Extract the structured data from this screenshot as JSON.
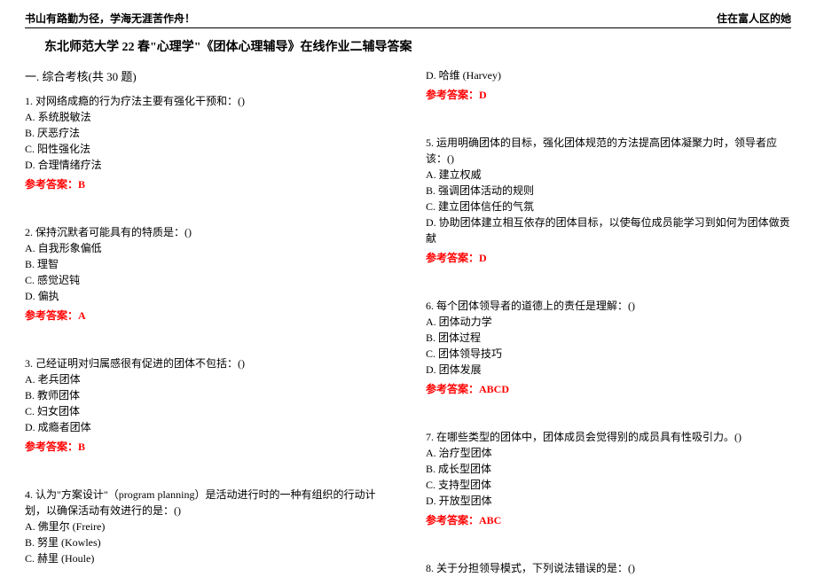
{
  "header": {
    "left": "书山有路勤为径，学海无涯苦作舟！",
    "right": "住在富人区的她"
  },
  "title": "东北师范大学 22 春\"心理学\"《团体心理辅导》在线作业二辅导答案",
  "section_heading": "一. 综合考核(共 30 题)",
  "answer_label_prefix": "参考答案：",
  "left_questions": [
    {
      "num": "1",
      "text": "对网络成瘾的行为疗法主要有强化干预和：()",
      "options": [
        "A. 系统脱敏法",
        "B. 厌恶疗法",
        "C. 阳性强化法",
        "D. 合理情绪疗法"
      ],
      "answer": "B"
    },
    {
      "num": "2",
      "text": "保持沉默者可能具有的特质是：()",
      "options": [
        "A. 自我形象偏低",
        "B. 理智",
        "C. 感觉迟钝",
        "D. 偏执"
      ],
      "answer": "A"
    },
    {
      "num": "3",
      "text": "己经证明对归属感很有促进的团体不包括：()",
      "options": [
        "A. 老兵团体",
        "B. 教师团体",
        "C. 妇女团体",
        "D. 成瘾者团体"
      ],
      "answer": "B"
    },
    {
      "num": "4",
      "text": "认为\"方案设计\"（program planning）是活动进行时的一种有组织的行动计划，以确保活动有效进行的是：()",
      "options": [
        "A. 佛里尔 (Freire)",
        "B. 努里 (Kowles)",
        "C. 赫里 (Houle)"
      ],
      "answer": null
    }
  ],
  "right_questions": [
    {
      "pre_option": "D. 哈维 (Harvey)",
      "answer": "D"
    },
    {
      "num": "5",
      "text": "运用明确团体的目标，强化团体规范的方法提高团体凝聚力时，领导者应该：()",
      "options": [
        "A. 建立权威",
        "B. 强调团体活动的规则",
        "C. 建立团体信任的气氛",
        "D. 协助团体建立相互依存的团体目标，以使每位成员能学习到如何为团体做贡献"
      ],
      "answer": "D"
    },
    {
      "num": "6",
      "text": "每个团体领导者的道德上的责任是理解：()",
      "options": [
        "A. 团体动力学",
        "B. 团体过程",
        "C. 团体领导技巧",
        "D. 团体发展"
      ],
      "answer": "ABCD"
    },
    {
      "num": "7",
      "text": "在哪些类型的团体中，团体成员会觉得别的成员具有性吸引力。()",
      "options": [
        "A. 治疗型团体",
        "B. 成长型团体",
        "C. 支持型团体",
        "D. 开放型团体"
      ],
      "answer": "ABC"
    },
    {
      "num": "8",
      "text": "关于分担领导模式，下列说法错误的是：()",
      "options": [],
      "answer": null
    }
  ],
  "colors": {
    "text": "#000000",
    "answer": "#ff0000",
    "background": "#ffffff",
    "border": "#000000"
  }
}
